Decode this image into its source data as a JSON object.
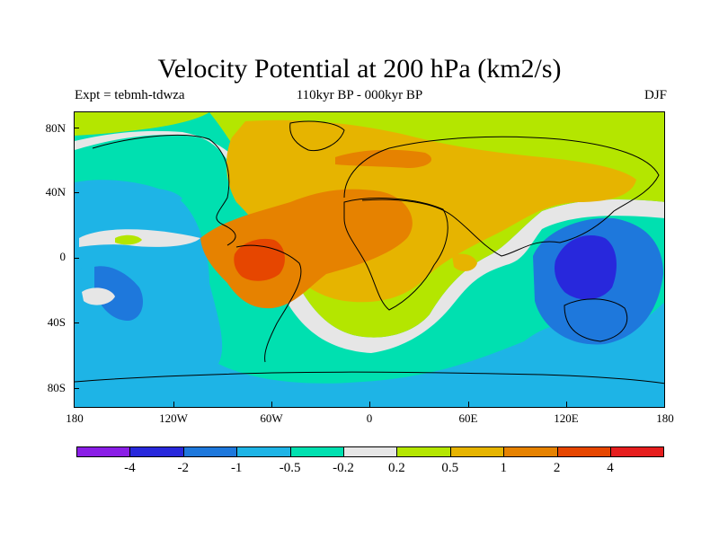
{
  "title": "Velocity Potential at 200 hPa (km2/s)",
  "subtitle": {
    "left": "Expt = tebmh-tdwza",
    "center": "110kyr BP - 000kyr BP",
    "right": "DJF"
  },
  "map": {
    "projection": "cylindrical-equidistant",
    "lat_labels": [
      "80N",
      "40N",
      "0",
      "40S",
      "80S"
    ],
    "lon_labels": [
      "180",
      "120W",
      "60W",
      "0",
      "60E",
      "120E",
      "180"
    ],
    "background_color": "#00e0b0"
  },
  "colorbar": {
    "colors": [
      "#8a1ee6",
      "#2828dc",
      "#1e78dc",
      "#1eb4e6",
      "#00e0b0",
      "#e6e6e6",
      "#b4e600",
      "#e6b400",
      "#e68200",
      "#e64600",
      "#e61e1e"
    ],
    "labels": [
      "-4",
      "-2",
      "-1",
      "-0.5",
      "-0.2",
      "0.2",
      "0.5",
      "1",
      "2",
      "4"
    ]
  }
}
